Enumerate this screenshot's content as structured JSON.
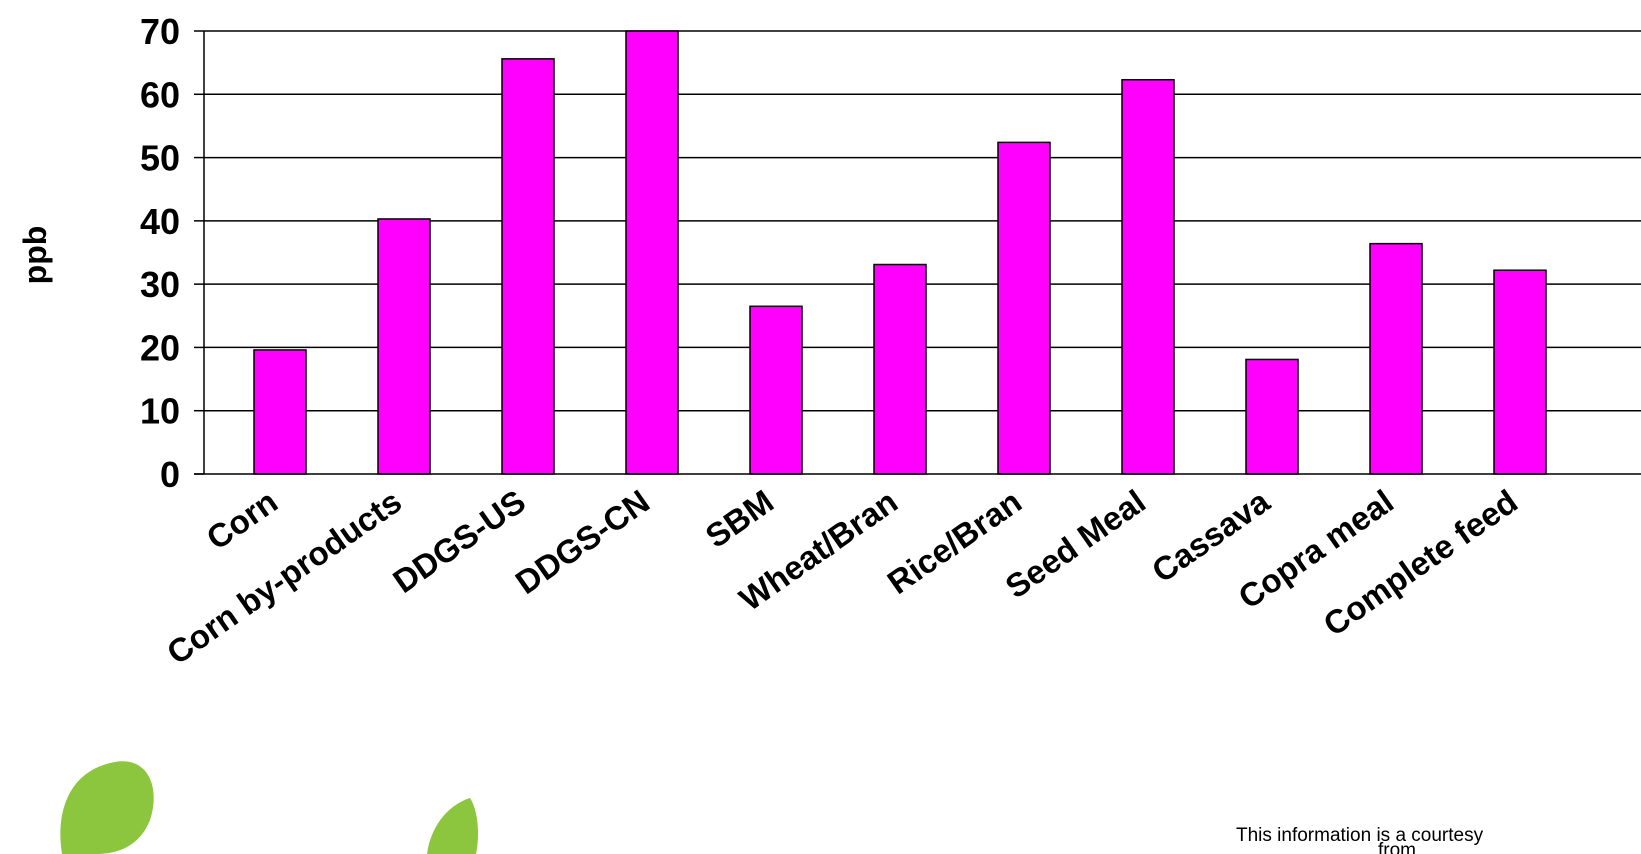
{
  "chart_data": {
    "type": "bar",
    "title": "",
    "xlabel": "",
    "ylabel": "ppb",
    "ylim": [
      0,
      70
    ],
    "yticks": [
      0,
      10,
      20,
      30,
      40,
      50,
      60,
      70
    ],
    "grid": true,
    "legend": "none",
    "categories": [
      "Corn",
      "Corn by-products",
      "DDGS-US",
      "DDGS-CN",
      "SBM",
      "Wheat/Bran",
      "Rice/Bran",
      "Seed Meal",
      "Cassava",
      "Copra meal",
      "Complete feed"
    ],
    "series": [
      {
        "values": [
          19.6,
          40.3,
          65.6,
          70.0,
          26.5,
          33.1,
          52.4,
          62.3,
          18.1,
          36.4,
          32.2
        ],
        "color": "#ff00ff"
      }
    ]
  },
  "footer": {
    "courtesy_line1": "This information is a courtesy",
    "courtesy_line2": "from"
  },
  "colors": {
    "bar": "#ff00ff",
    "bar_stroke": "#000000",
    "grid": "#000000",
    "leaf": "#8cc63f"
  }
}
